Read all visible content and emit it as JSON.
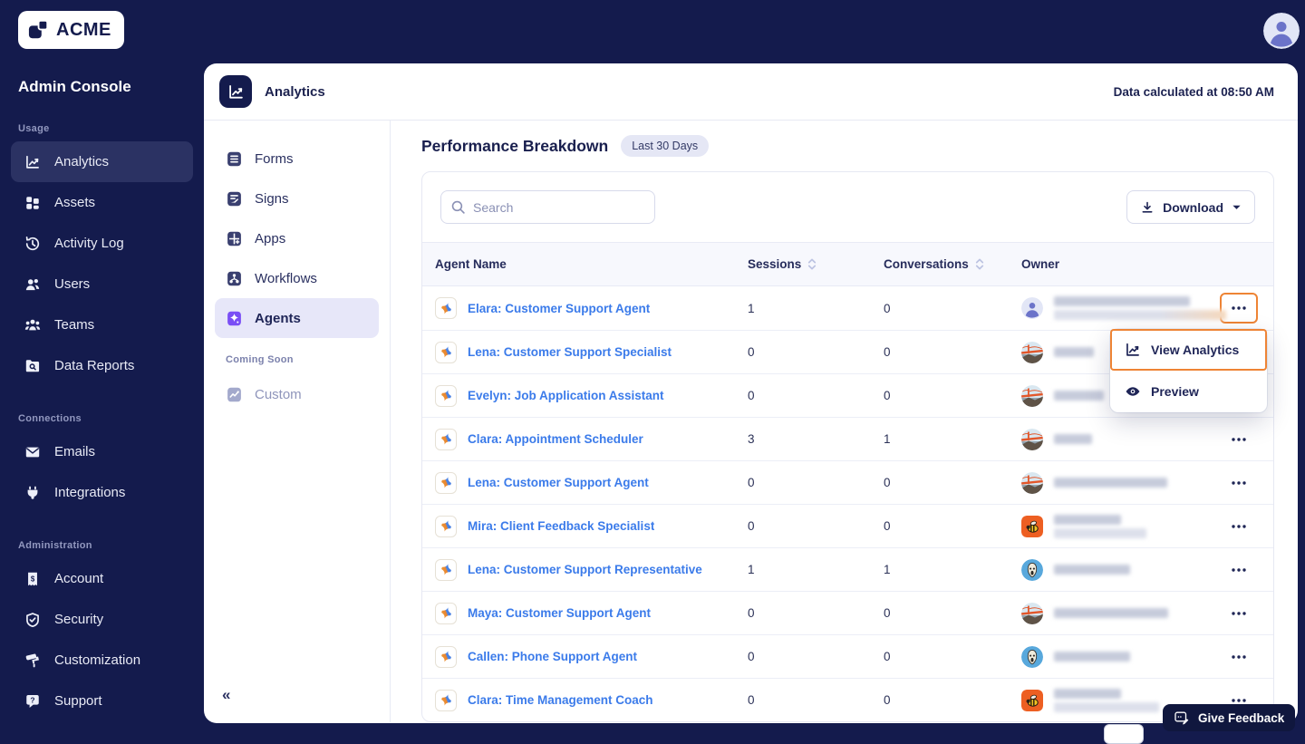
{
  "brand": {
    "logo_text": "ACME"
  },
  "sidebar": {
    "title": "Admin Console",
    "sections": [
      {
        "label": "Usage",
        "items": [
          {
            "label": "Analytics",
            "icon": "chart-line",
            "active": true
          },
          {
            "label": "Assets",
            "icon": "grid",
            "active": false
          },
          {
            "label": "Activity Log",
            "icon": "history",
            "active": false
          },
          {
            "label": "Users",
            "icon": "users",
            "active": false
          },
          {
            "label": "Teams",
            "icon": "teams",
            "active": false
          },
          {
            "label": "Data Reports",
            "icon": "folder-search",
            "active": false
          }
        ]
      },
      {
        "label": "Connections",
        "items": [
          {
            "label": "Emails",
            "icon": "mail",
            "active": false
          },
          {
            "label": "Integrations",
            "icon": "plug",
            "active": false
          }
        ]
      },
      {
        "label": "Administration",
        "items": [
          {
            "label": "Account",
            "icon": "receipt-dollar",
            "active": false
          },
          {
            "label": "Security",
            "icon": "shield-check",
            "active": false
          },
          {
            "label": "Customization",
            "icon": "paint-roller",
            "active": false
          },
          {
            "label": "Support",
            "icon": "chat-question",
            "active": false
          }
        ]
      }
    ]
  },
  "header": {
    "title": "Analytics",
    "status_text": "Data calculated at 08:50 AM"
  },
  "subsidebar": {
    "items": [
      {
        "label": "Forms",
        "icon": "forms",
        "active": false
      },
      {
        "label": "Signs",
        "icon": "signs",
        "active": false
      },
      {
        "label": "Apps",
        "icon": "apps",
        "active": false
      },
      {
        "label": "Workflows",
        "icon": "workflows",
        "active": false
      },
      {
        "label": "Agents",
        "icon": "agents",
        "active": true
      }
    ],
    "coming_soon_label": "Coming Soon",
    "coming_soon_items": [
      {
        "label": "Custom",
        "icon": "custom"
      }
    ]
  },
  "main": {
    "heading": "Performance Breakdown",
    "badge": "Last 30 Days",
    "search_placeholder": "Search",
    "download_label": "Download"
  },
  "table": {
    "columns": [
      {
        "label": "Agent Name",
        "sortable": false
      },
      {
        "label": "Sessions",
        "sortable": true
      },
      {
        "label": "Conversations",
        "sortable": true
      },
      {
        "label": "Owner",
        "sortable": false
      }
    ],
    "rows": [
      {
        "name": "Elara: Customer Support Agent",
        "sessions": "1",
        "conversations": "0",
        "avatar": "person",
        "owner_redacted_lines": [
          150,
          190
        ],
        "menu_open": true
      },
      {
        "name": "Lena: Customer Support Specialist",
        "sessions": "0",
        "conversations": "0",
        "avatar": "bridge",
        "owner_redacted_lines": [
          44
        ],
        "menu_open": false
      },
      {
        "name": "Evelyn: Job Application Assistant",
        "sessions": "0",
        "conversations": "0",
        "avatar": "bridge",
        "owner_redacted_lines": [
          55
        ],
        "menu_open": false
      },
      {
        "name": "Clara: Appointment Scheduler",
        "sessions": "3",
        "conversations": "1",
        "avatar": "bridge",
        "owner_redacted_lines": [
          42
        ],
        "menu_open": false
      },
      {
        "name": "Lena: Customer Support Agent",
        "sessions": "0",
        "conversations": "0",
        "avatar": "bridge",
        "owner_redacted_lines": [
          125
        ],
        "menu_open": false
      },
      {
        "name": "Mira: Client Feedback Specialist",
        "sessions": "0",
        "conversations": "0",
        "avatar": "bee",
        "owner_redacted_lines": [
          74,
          102
        ],
        "menu_open": false
      },
      {
        "name": "Lena: Customer Support Representative",
        "sessions": "1",
        "conversations": "1",
        "avatar": "scream",
        "owner_redacted_lines": [
          84
        ],
        "menu_open": false
      },
      {
        "name": "Maya: Customer Support Agent",
        "sessions": "0",
        "conversations": "0",
        "avatar": "bridge",
        "owner_redacted_lines": [
          126
        ],
        "menu_open": false
      },
      {
        "name": "Callen: Phone Support Agent",
        "sessions": "0",
        "conversations": "0",
        "avatar": "scream",
        "owner_redacted_lines": [
          84
        ],
        "menu_open": false
      },
      {
        "name": "Clara: Time Management Coach",
        "sessions": "0",
        "conversations": "0",
        "avatar": "bee",
        "owner_redacted_lines": [
          74,
          116
        ],
        "menu_open": false
      }
    ]
  },
  "context_menu": {
    "items": [
      {
        "label": "View Analytics",
        "icon": "chart-line",
        "highlighted": true
      },
      {
        "label": "Preview",
        "icon": "eye",
        "highlighted": false
      }
    ]
  },
  "feedback_button": {
    "label": "Give Feedback"
  },
  "colors": {
    "accent_orange": "#EE8435",
    "navy": "#141B4D",
    "link_blue": "#3B7BEA",
    "active_row_bg": "#E7E7F9"
  }
}
